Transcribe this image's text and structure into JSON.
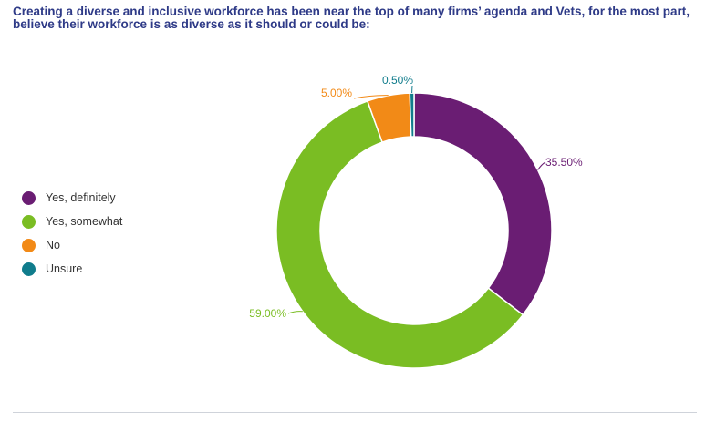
{
  "chart_data": {
    "type": "pie",
    "title": "Creating a diverse and inclusive workforce has been near the top of many firms’ agenda and Vets, for the most part, believe their workforce is as diverse as it should or could be:",
    "categories": [
      "Yes, definitely",
      "Yes, somewhat",
      "No",
      "Unsure"
    ],
    "values": [
      35.5,
      59.0,
      5.0,
      0.5
    ],
    "value_labels": [
      "35.50%",
      "59.00%",
      "5.00%",
      "0.50%"
    ],
    "colors": [
      "#6a1d73",
      "#7abd23",
      "#f28a17",
      "#107c8c"
    ],
    "label_colors": [
      "#6a1d73",
      "#7abd23",
      "#f28a17",
      "#107c8c"
    ],
    "donut": true,
    "legend_position": "left"
  }
}
